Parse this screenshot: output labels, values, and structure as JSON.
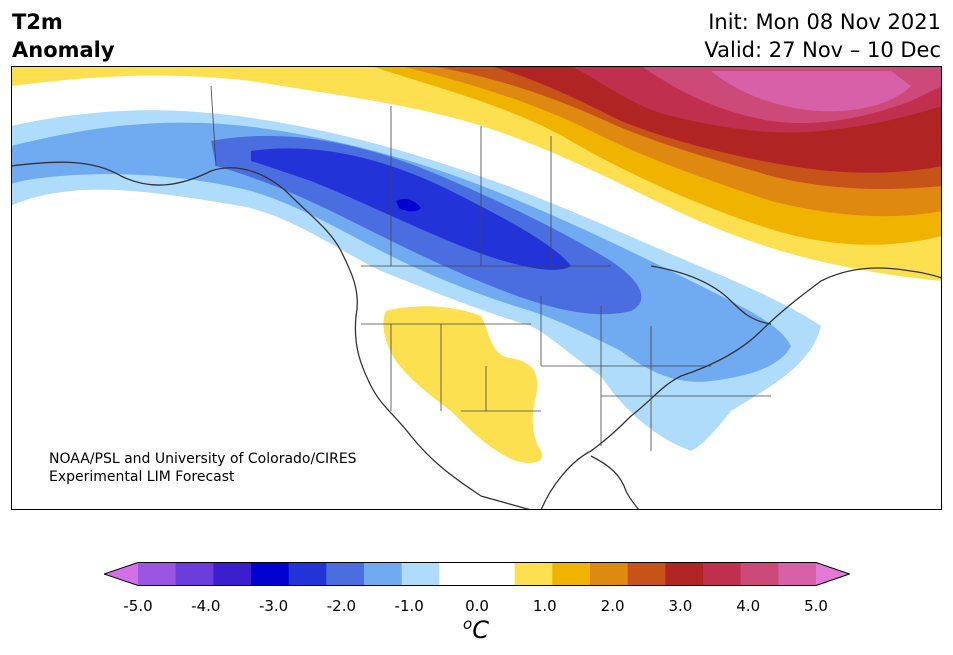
{
  "header": {
    "var_line1": "T2m",
    "var_line2": "Anomaly",
    "init": "Init: Mon 08 Nov 2021",
    "valid": "Valid: 27 Nov – 10 Dec"
  },
  "credit": {
    "line1": "NOAA/PSL and University of Colorado/CIRES",
    "line2": "Experimental LIM Forecast"
  },
  "colorbar": {
    "ticks": [
      "-5.0",
      "-4.0",
      "-3.0",
      "-2.0",
      "-1.0",
      "0.0",
      "1.0",
      "2.0",
      "3.0",
      "4.0",
      "5.0"
    ],
    "unit_symbol": "o",
    "unit_letter": "C",
    "colors": [
      "#d46fe8",
      "#9b55e0",
      "#6a3ddc",
      "#3b1fcf",
      "#0000d0",
      "#2233d8",
      "#4a6ee0",
      "#70aaf0",
      "#aedcfa",
      "#ffffff",
      "#ffffff",
      "#fde050",
      "#f0b400",
      "#de8a10",
      "#c65318",
      "#b02424",
      "#c0304e",
      "#cc4a78",
      "#d760a8",
      "#e47ad8"
    ]
  }
}
